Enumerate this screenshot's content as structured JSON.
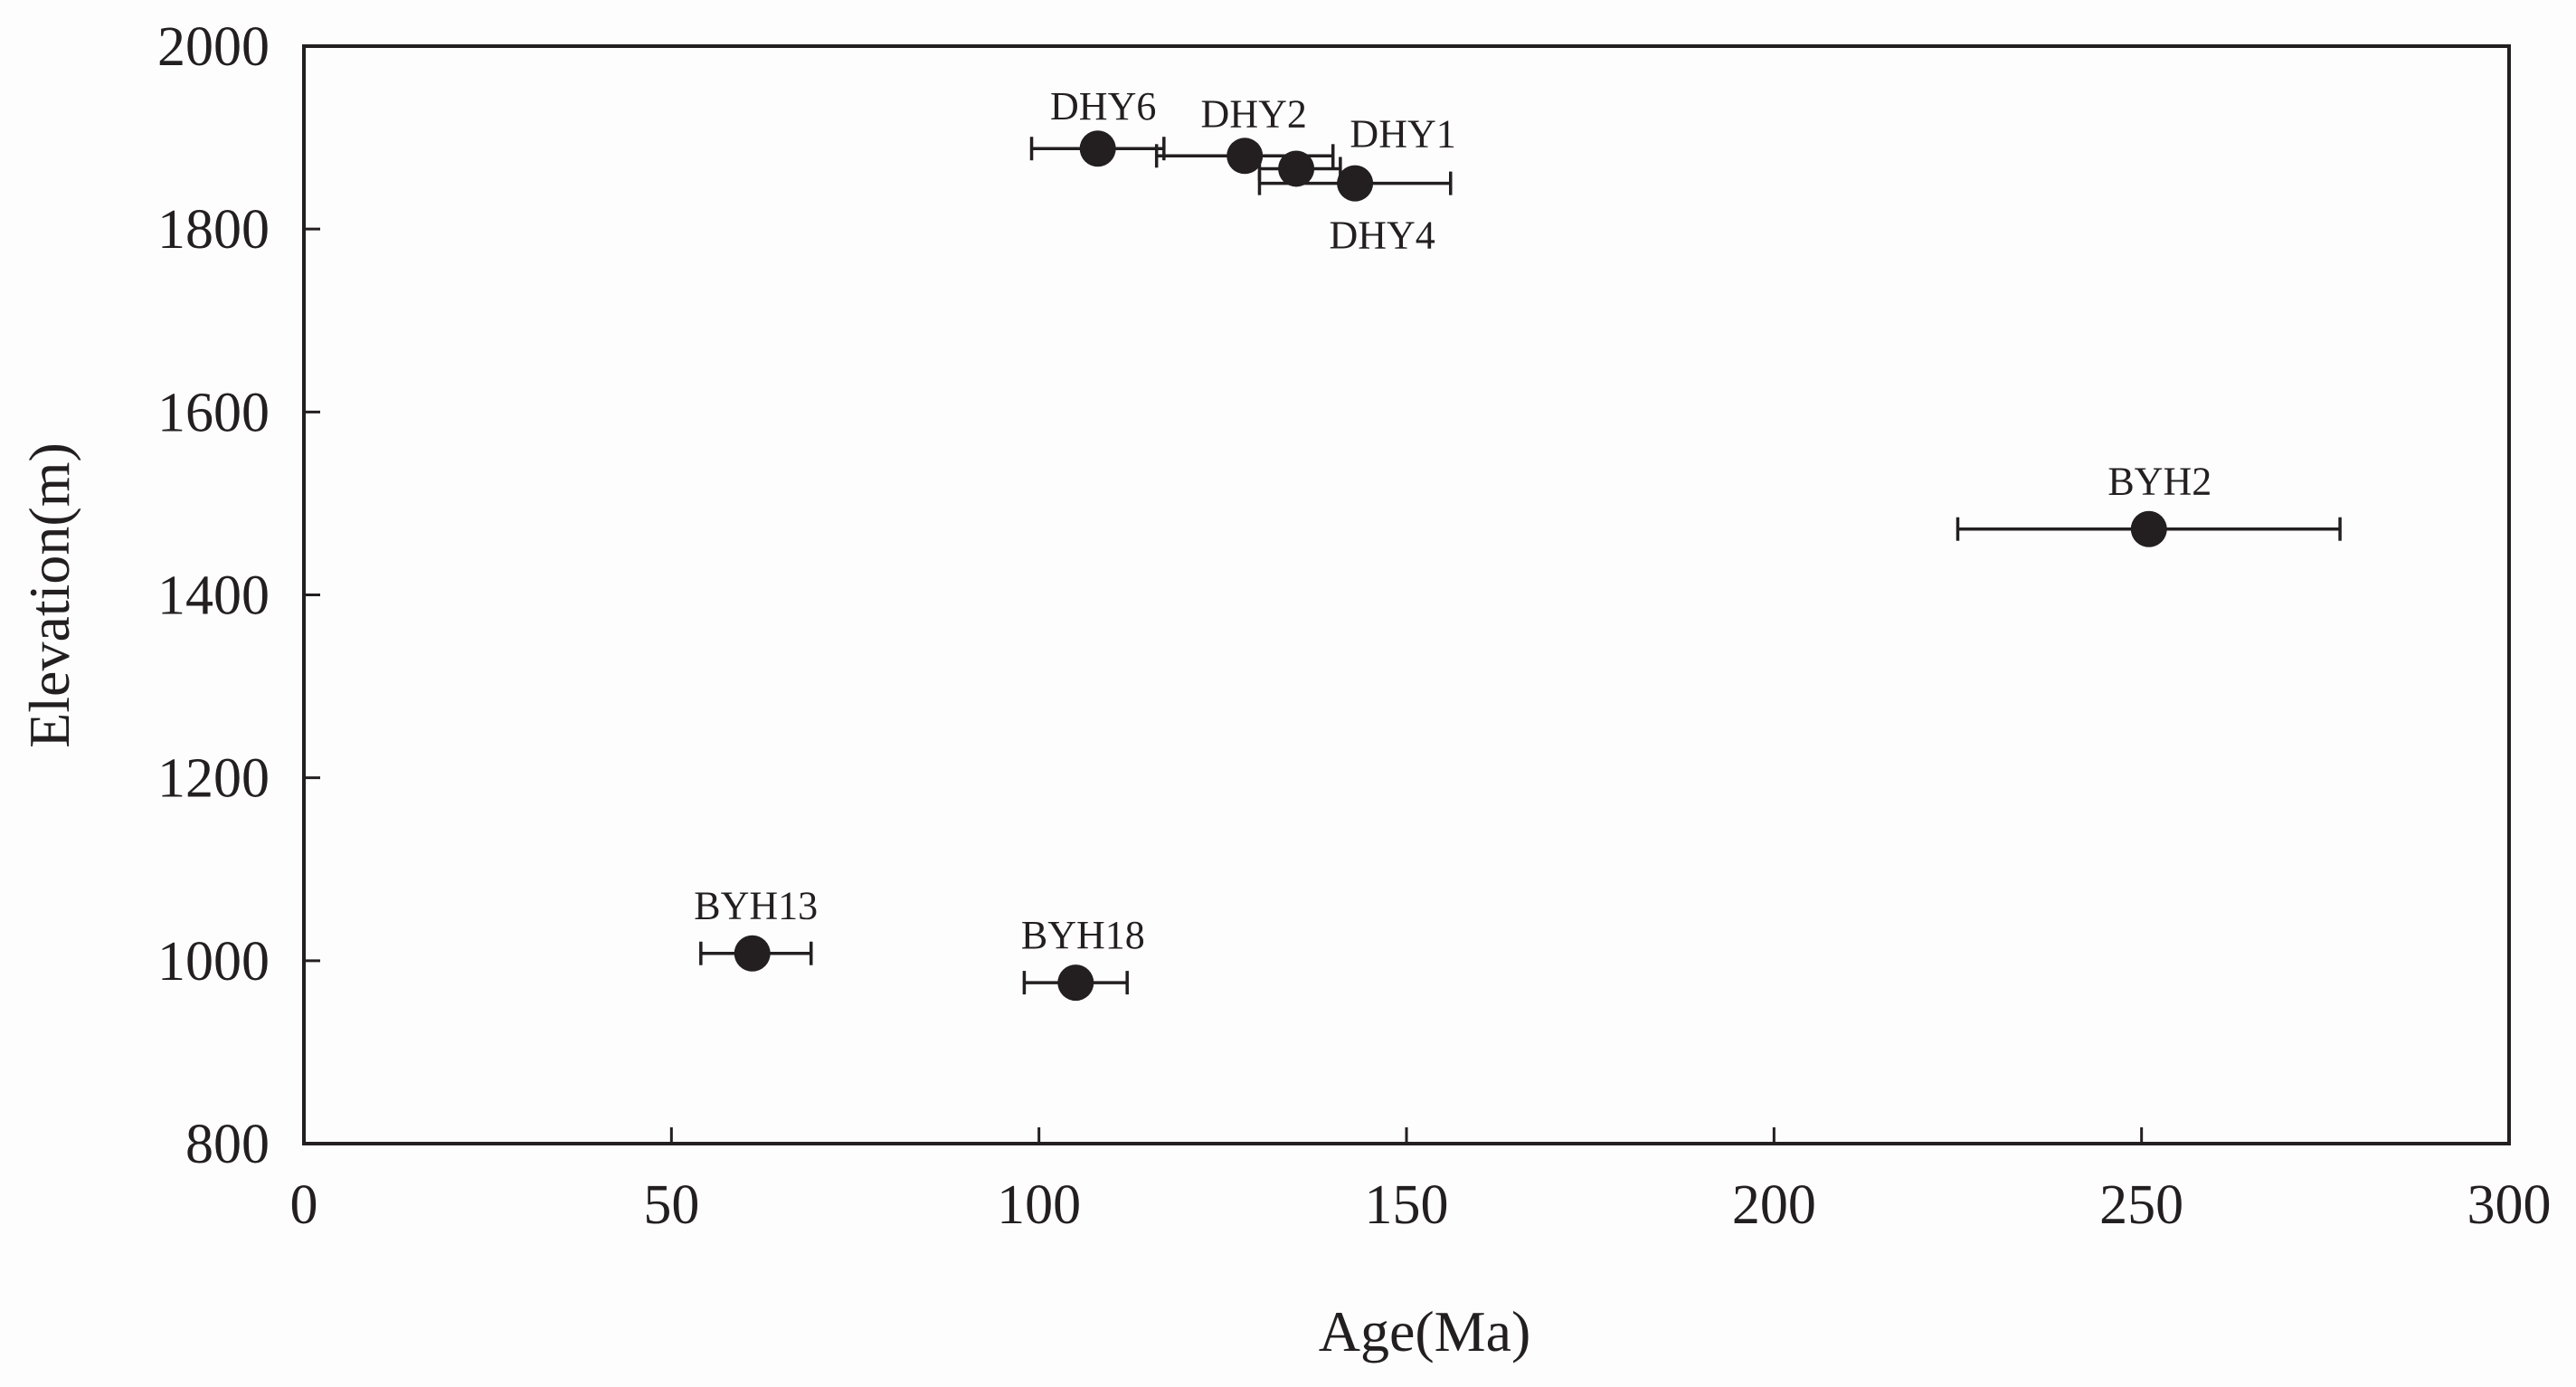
{
  "chart_data": {
    "type": "scatter",
    "title": "",
    "xlabel": "Age(Ma)",
    "ylabel": "Elevation(m)",
    "xlim": [
      0,
      300
    ],
    "ylim": [
      800,
      2000
    ],
    "xticks": [
      0,
      50,
      100,
      150,
      200,
      250,
      300
    ],
    "yticks": [
      800,
      1000,
      1200,
      1400,
      1600,
      1800,
      2000
    ],
    "grid": false,
    "colors": {
      "marker": "#231f20",
      "axis": "#231f20",
      "background": "#fdfdfd"
    },
    "points": [
      {
        "label": "DHY6",
        "x": 108,
        "y": 1888,
        "xerr_low": 99,
        "xerr_high": 117
      },
      {
        "label": "DHY2",
        "x": 128,
        "y": 1880,
        "xerr_low": 116,
        "xerr_high": 140
      },
      {
        "label": "DHY1",
        "x": 135,
        "y": 1866,
        "xerr_low": 130,
        "xerr_high": 141
      },
      {
        "label": "DHY4",
        "x": 143,
        "y": 1850,
        "xerr_low": 130,
        "xerr_high": 156
      },
      {
        "label": "BYH2",
        "x": 251,
        "y": 1472,
        "xerr_low": 225,
        "xerr_high": 277
      },
      {
        "label": "BYH13",
        "x": 61,
        "y": 1008,
        "xerr_low": 54,
        "xerr_high": 69
      },
      {
        "label": "BYH18",
        "x": 105,
        "y": 976,
        "xerr_low": 98,
        "xerr_high": 112
      }
    ]
  }
}
